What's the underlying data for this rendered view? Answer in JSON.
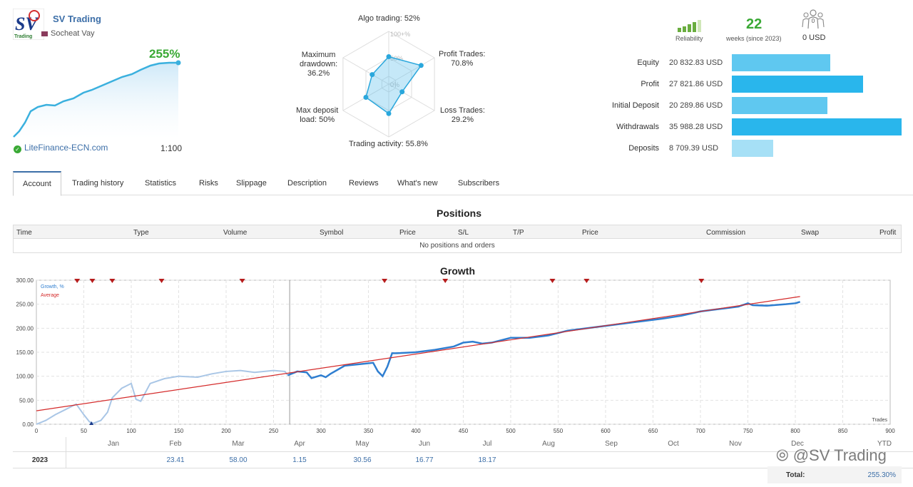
{
  "profile": {
    "logo_text": "SV Trading",
    "name": "SV Trading",
    "author": "Socheat Vay",
    "growth": "255%",
    "broker": "LiteFinance-ECN.com",
    "leverage": "1:100"
  },
  "radar": {
    "algo": "Algo trading: 52%",
    "profit": "Profit Trades:\n70.8%",
    "loss": "Loss Trades:\n29.2%",
    "activity": "Trading activity: 55.8%",
    "deposit_load": "Max deposit\nload: 50%",
    "drawdown": "Maximum\ndrawdown:\n36.2%",
    "ring_100": "100+%",
    "ring_50": "50%",
    "ring_0": "0%",
    "values": {
      "algo": 52,
      "profit": 70.8,
      "loss": 29.2,
      "activity": 55.8,
      "deposit_load": 50,
      "drawdown": 36.2
    }
  },
  "stats": {
    "reliability_label": "Reliability",
    "weeks": "22",
    "weeks_label": "weeks (since 2023)",
    "subscribers_count": "0",
    "subscribers_funds": "0 USD"
  },
  "balances": [
    {
      "label": "Equity",
      "value": "20 832.83 USD",
      "amount": 20832.83,
      "color": "#5fc8f0"
    },
    {
      "label": "Profit",
      "value": "27 821.86 USD",
      "amount": 27821.86,
      "color": "#29b6ec"
    },
    {
      "label": "Initial Deposit",
      "value": "20 289.86 USD",
      "amount": 20289.86,
      "color": "#5fc8f0"
    },
    {
      "label": "Withdrawals",
      "value": "35 988.28 USD",
      "amount": 35988.28,
      "color": "#29b6ec"
    },
    {
      "label": "Deposits",
      "value": "8 709.39 USD",
      "amount": 8709.39,
      "color": "#a6e0f6"
    }
  ],
  "tabs": [
    "Account",
    "Trading history",
    "Statistics",
    "Risks",
    "Slippage",
    "Description",
    "Reviews",
    "What's new",
    "Subscribers"
  ],
  "positions": {
    "title": "Positions",
    "columns": [
      "Time",
      "Type",
      "Volume",
      "Symbol",
      "Price",
      "S/L",
      "T/P",
      "Price",
      "Commission",
      "Swap",
      "Profit"
    ],
    "empty": "No positions and orders"
  },
  "growth": {
    "title": "Growth",
    "legend_growth": "Growth, %",
    "legend_average": "Average",
    "x_axis_label": "Trades",
    "colors": {
      "growth": "#2f7ed0",
      "growth_light": "#a9c6e6",
      "average": "#d42a2a"
    }
  },
  "chart_data": {
    "type": "line",
    "xlim": [
      0,
      900
    ],
    "ylim": [
      0,
      300
    ],
    "x_ticks": [
      0,
      50,
      100,
      150,
      200,
      250,
      300,
      350,
      400,
      450,
      500,
      550,
      600,
      650,
      700,
      750,
      800,
      850,
      900
    ],
    "y_ticks": [
      "0.00",
      "50.00",
      "100.00",
      "150.00",
      "200.00",
      "250.00",
      "300.00"
    ],
    "series": [
      {
        "name": "Growth, %",
        "x": [
          0,
          10,
          20,
          30,
          42,
          50,
          56,
          60,
          68,
          75,
          80,
          90,
          100,
          105,
          110,
          120,
          135,
          150,
          170,
          185,
          200,
          215,
          230,
          250,
          262,
          265,
          275,
          285,
          290,
          300,
          305,
          310,
          325,
          340,
          355,
          360,
          365,
          370,
          375,
          380,
          400,
          420,
          440,
          450,
          460,
          470,
          480,
          500,
          520,
          540,
          560,
          580,
          600,
          620,
          640,
          660,
          680,
          700,
          720,
          740,
          750,
          755,
          770,
          790,
          800,
          805
        ],
        "y": [
          0,
          8,
          20,
          30,
          42,
          20,
          5,
          2,
          8,
          25,
          55,
          75,
          85,
          52,
          48,
          85,
          95,
          100,
          98,
          105,
          110,
          112,
          108,
          112,
          110,
          102,
          110,
          108,
          96,
          102,
          98,
          105,
          122,
          125,
          128,
          110,
          100,
          120,
          148,
          148,
          150,
          155,
          162,
          170,
          172,
          168,
          170,
          180,
          180,
          185,
          195,
          200,
          205,
          210,
          215,
          220,
          226,
          235,
          240,
          245,
          252,
          248,
          247,
          250,
          252,
          255
        ]
      },
      {
        "name": "Average",
        "x": [
          0,
          805
        ],
        "y": [
          28,
          266
        ]
      }
    ],
    "trade_markers_x": [
      43,
      59,
      80,
      132,
      217,
      367,
      431,
      544,
      580,
      701
    ],
    "divider_x": 267
  },
  "monthly": {
    "months": [
      "Jan",
      "Feb",
      "Mar",
      "Apr",
      "May",
      "Jun",
      "Jul",
      "Aug",
      "Sep",
      "Oct",
      "Nov",
      "Dec",
      "YTD"
    ],
    "year": "2023",
    "values": [
      "",
      "23.41",
      "58.00",
      "1.15",
      "30.56",
      "16.77",
      "18.17",
      "",
      "",
      "",
      "",
      "",
      ""
    ],
    "total_label": "Total:",
    "total_value": "255.30%"
  },
  "watermark": "@SV Trading"
}
